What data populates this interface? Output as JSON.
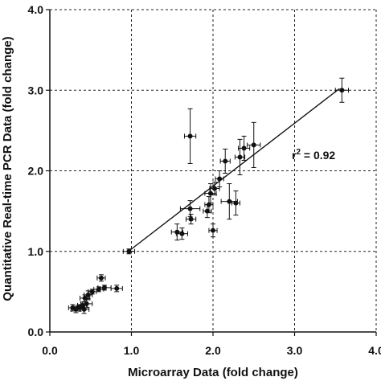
{
  "chart_data": {
    "type": "scatter",
    "title": "",
    "xlabel": "Microarray Data (fold  change)",
    "ylabel": "Quantitative Real-time PCR Data (fold change)",
    "xlim": [
      0,
      4
    ],
    "ylim": [
      0,
      4
    ],
    "x_ticks": [
      "0.0",
      "1.0",
      "2.0",
      "3.0",
      "4.0"
    ],
    "y_ticks": [
      "0.0",
      "1.0",
      "2.0",
      "3.0",
      "4.0"
    ],
    "grid": "dashed at major ticks",
    "annotation": {
      "prefix": "r",
      "superscript": "2",
      "suffix": " = 0.92"
    },
    "regression_line": {
      "x": [
        0.95,
        3.55
      ],
      "y": [
        0.99,
        3.02
      ]
    },
    "points": [
      {
        "x": 3.58,
        "y": 3.0,
        "xerr": 0.08,
        "yerr": 0.15
      },
      {
        "x": 1.72,
        "y": 2.43,
        "xerr": 0.07,
        "yerr": 0.34
      },
      {
        "x": 2.5,
        "y": 2.32,
        "xerr": 0.08,
        "yerr": 0.28
      },
      {
        "x": 2.38,
        "y": 2.28,
        "xerr": 0.07,
        "yerr": 0.15
      },
      {
        "x": 2.33,
        "y": 2.17,
        "xerr": 0.06,
        "yerr": 0.22
      },
      {
        "x": 2.15,
        "y": 2.12,
        "xerr": 0.06,
        "yerr": 0.15
      },
      {
        "x": 2.08,
        "y": 1.9,
        "xerr": 0.05,
        "yerr": 0.1
      },
      {
        "x": 2.02,
        "y": 1.78,
        "xerr": 0.06,
        "yerr": 0.08
      },
      {
        "x": 1.97,
        "y": 1.72,
        "xerr": 0.07,
        "yerr": 0.12
      },
      {
        "x": 2.2,
        "y": 1.62,
        "xerr": 0.1,
        "yerr": 0.22
      },
      {
        "x": 2.28,
        "y": 1.6,
        "xerr": 0.05,
        "yerr": 0.15
      },
      {
        "x": 1.95,
        "y": 1.58,
        "xerr": 0.05,
        "yerr": 0.1
      },
      {
        "x": 1.72,
        "y": 1.53,
        "xerr": 0.12,
        "yerr": 0.1
      },
      {
        "x": 1.93,
        "y": 1.5,
        "xerr": 0.05,
        "yerr": 0.08
      },
      {
        "x": 1.73,
        "y": 1.4,
        "xerr": 0.06,
        "yerr": 0.06
      },
      {
        "x": 2.0,
        "y": 1.26,
        "xerr": 0.05,
        "yerr": 0.08
      },
      {
        "x": 1.56,
        "y": 1.24,
        "xerr": 0.07,
        "yerr": 0.1
      },
      {
        "x": 1.62,
        "y": 1.22,
        "xerr": 0.07,
        "yerr": 0.07
      },
      {
        "x": 0.97,
        "y": 1.0,
        "xerr": 0.07,
        "yerr": 0.03
      },
      {
        "x": 0.63,
        "y": 0.67,
        "xerr": 0.05,
        "yerr": 0.04
      },
      {
        "x": 0.82,
        "y": 0.54,
        "xerr": 0.07,
        "yerr": 0.04
      },
      {
        "x": 0.67,
        "y": 0.55,
        "xerr": 0.08,
        "yerr": 0.03
      },
      {
        "x": 0.6,
        "y": 0.53,
        "xerr": 0.06,
        "yerr": 0.03
      },
      {
        "x": 0.52,
        "y": 0.5,
        "xerr": 0.05,
        "yerr": 0.03
      },
      {
        "x": 0.47,
        "y": 0.46,
        "xerr": 0.05,
        "yerr": 0.05
      },
      {
        "x": 0.43,
        "y": 0.42,
        "xerr": 0.06,
        "yerr": 0.04
      },
      {
        "x": 0.45,
        "y": 0.35,
        "xerr": 0.07,
        "yerr": 0.05
      },
      {
        "x": 0.4,
        "y": 0.33,
        "xerr": 0.06,
        "yerr": 0.04
      },
      {
        "x": 0.36,
        "y": 0.3,
        "xerr": 0.07,
        "yerr": 0.04
      },
      {
        "x": 0.32,
        "y": 0.28,
        "xerr": 0.06,
        "yerr": 0.04
      },
      {
        "x": 0.28,
        "y": 0.3,
        "xerr": 0.05,
        "yerr": 0.04
      },
      {
        "x": 0.42,
        "y": 0.28,
        "xerr": 0.06,
        "yerr": 0.05
      }
    ]
  }
}
